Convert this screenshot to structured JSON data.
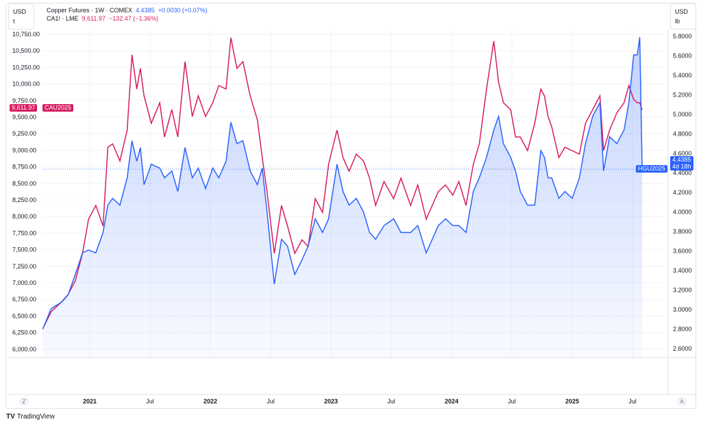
{
  "legend": {
    "main": "Copper Futures · 1W · COMEX",
    "main_price": "4.4385",
    "main_change": "+0.0030 (+0.07%)",
    "compare": "CA1! · LME",
    "compare_price": "9,611.97",
    "compare_change": "−132.47 (−1.36%)"
  },
  "left_unit": {
    "currency": "USD",
    "unit": "t"
  },
  "right_unit": {
    "currency": "USD",
    "unit": "lb"
  },
  "tags": {
    "red_price": "9,611.97",
    "red_symbol": "CAU2025",
    "blue_symbol": "HGU2025",
    "blue_price": "4.4385",
    "blue_countdown": "4d 18h"
  },
  "time_axis": {
    "z_button": "Z",
    "a_button": "A"
  },
  "brand": "TradingView",
  "colors": {
    "blue": "#2962ff",
    "red": "#d81b60"
  },
  "chart_data": {
    "type": "line",
    "title": "Copper Futures · 1W · COMEX",
    "x_ticks": [
      {
        "t": 2021,
        "label": "2021"
      },
      {
        "t": 2021.5,
        "label": "Jul"
      },
      {
        "t": 2022,
        "label": "2022"
      },
      {
        "t": 2022.5,
        "label": "Jul"
      },
      {
        "t": 2023,
        "label": "2023"
      },
      {
        "t": 2023.5,
        "label": "Jul"
      },
      {
        "t": 2024,
        "label": "2024"
      },
      {
        "t": 2024.5,
        "label": "Jul"
      },
      {
        "t": 2025,
        "label": "2025"
      },
      {
        "t": 2025.5,
        "label": "Jul"
      }
    ],
    "left_axis": {
      "unit": "USD/t",
      "ylim": [
        6000,
        10750
      ],
      "ticks": [
        "10,750.00",
        "10,500.00",
        "10,250.00",
        "10,000.00",
        "9,750.00",
        "9,500.00",
        "9,250.00",
        "9,000.00",
        "8,750.00",
        "8,500.00",
        "8,250.00",
        "8,000.00",
        "7,750.00",
        "7,500.00",
        "7,250.00",
        "7,000.00",
        "6,750.00",
        "6,500.00",
        "6,250.00",
        "6,000.00"
      ]
    },
    "right_axis": {
      "unit": "USD/lb",
      "ylim": [
        2.6,
        5.8
      ],
      "ticks": [
        "5.8000",
        "5.6000",
        "5.4000",
        "5.2000",
        "5.0000",
        "4.8000",
        "4.6000",
        "4.4000",
        "4.2000",
        "4.0000",
        "3.8000",
        "3.6000",
        "3.4000",
        "3.2000",
        "3.0000",
        "2.8000",
        "2.6000"
      ]
    },
    "x": [
      2020.61,
      2020.68,
      2020.77,
      2020.82,
      2020.88,
      2020.94,
      2020.99,
      2021.05,
      2021.11,
      2021.15,
      2021.19,
      2021.25,
      2021.31,
      2021.35,
      2021.39,
      2021.42,
      2021.45,
      2021.51,
      2021.58,
      2021.62,
      2021.68,
      2021.73,
      2021.79,
      2021.85,
      2021.9,
      2021.96,
      2022.02,
      2022.07,
      2022.13,
      2022.17,
      2022.22,
      2022.27,
      2022.33,
      2022.39,
      2022.43,
      2022.47,
      2022.53,
      2022.59,
      2022.64,
      2022.7,
      2022.76,
      2022.81,
      2022.87,
      2022.93,
      2022.98,
      2023.05,
      2023.1,
      2023.15,
      2023.21,
      2023.27,
      2023.32,
      2023.37,
      2023.44,
      2023.52,
      2023.58,
      2023.66,
      2023.72,
      2023.79,
      2023.84,
      2023.89,
      2023.95,
      2024.01,
      2024.06,
      2024.12,
      2024.18,
      2024.23,
      2024.29,
      2024.35,
      2024.39,
      2024.43,
      2024.49,
      2024.53,
      2024.57,
      2024.63,
      2024.69,
      2024.74,
      2024.77,
      2024.8,
      2024.83,
      2024.89,
      2024.94,
      2025.0,
      2025.06,
      2025.11,
      2025.17,
      2025.23,
      2025.26,
      2025.31,
      2025.37,
      2025.43,
      2025.47,
      2025.51,
      2025.54,
      2025.56,
      2025.58
    ],
    "series": [
      {
        "name": "CA1! · LME",
        "axis": "left",
        "values": [
          6307,
          6565,
          6720,
          6824,
          7030,
          7444,
          7960,
          8167,
          7857,
          9045,
          9097,
          8838,
          9304,
          10440,
          9924,
          10234,
          9820,
          9407,
          9717,
          9200,
          9613,
          9200,
          10337,
          9510,
          9820,
          9510,
          9717,
          9975,
          9924,
          10698,
          10234,
          10337,
          9820,
          9459,
          8890,
          8374,
          7444,
          8167,
          7857,
          7444,
          7650,
          7547,
          8270,
          8064,
          8787,
          9304,
          8890,
          8684,
          8942,
          8838,
          8580,
          8167,
          8529,
          8270,
          8580,
          8167,
          8477,
          7960,
          8167,
          8374,
          8477,
          8322,
          8529,
          8167,
          8787,
          9097,
          9924,
          10647,
          10027,
          9717,
          9613,
          9200,
          9200,
          8994,
          9407,
          9924,
          9820,
          9510,
          9355,
          8890,
          9045,
          8994,
          8942,
          9407,
          9613,
          9820,
          8994,
          9304,
          9562,
          9717,
          9975,
          9768,
          9717,
          9717,
          9611.97
        ]
      },
      {
        "name": "Copper Futures · COMEX",
        "axis": "right",
        "values": [
          2.8,
          3.01,
          3.08,
          3.15,
          3.36,
          3.58,
          3.61,
          3.58,
          3.79,
          4.07,
          4.14,
          4.07,
          4.35,
          4.73,
          4.52,
          4.66,
          4.28,
          4.49,
          4.45,
          4.35,
          4.42,
          4.21,
          4.66,
          4.35,
          4.45,
          4.24,
          4.45,
          4.35,
          4.52,
          4.92,
          4.7,
          4.73,
          4.42,
          4.28,
          4.45,
          4.0,
          3.26,
          3.72,
          3.65,
          3.36,
          3.51,
          3.65,
          3.93,
          3.79,
          3.93,
          4.49,
          4.21,
          4.07,
          4.14,
          4.0,
          3.79,
          3.72,
          3.86,
          3.93,
          3.79,
          3.79,
          3.86,
          3.58,
          3.72,
          3.86,
          3.93,
          3.86,
          3.86,
          3.79,
          4.21,
          4.35,
          4.56,
          4.84,
          4.98,
          4.7,
          4.56,
          4.42,
          4.21,
          4.07,
          4.07,
          4.63,
          4.56,
          4.35,
          4.35,
          4.14,
          4.21,
          4.14,
          4.35,
          4.7,
          4.98,
          5.12,
          4.42,
          4.77,
          4.7,
          4.84,
          5.12,
          5.61,
          5.61,
          5.79,
          4.4385
        ]
      }
    ]
  }
}
